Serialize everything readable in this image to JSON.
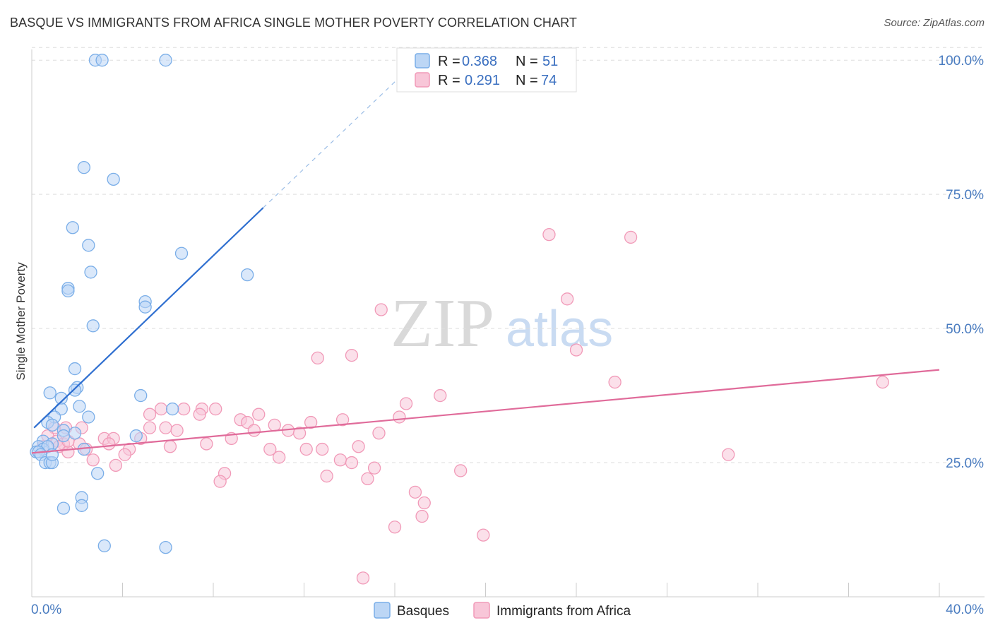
{
  "title": "BASQUE VS IMMIGRANTS FROM AFRICA SINGLE MOTHER POVERTY CORRELATION CHART",
  "source": "Source: ZipAtlas.com",
  "watermark": {
    "zip": "ZIP",
    "atlas": "atlas"
  },
  "colors": {
    "basque": "#7aaee8",
    "basque_fill": "#bcd6f5",
    "basque_line": "#2f6fd0",
    "africa": "#f19ab8",
    "africa_fill": "#f8c6d8",
    "africa_line": "#e06b9a",
    "tick_text": "#4a7cc0",
    "grid": "#dddddd"
  },
  "legend": {
    "r_label": "R =",
    "n_label": "N =",
    "rows": [
      {
        "r": "0.368",
        "n": "51"
      },
      {
        "r": "0.291",
        "n": "74"
      }
    ]
  },
  "bottom_legend": [
    "Basques",
    "Immigrants from Africa"
  ],
  "chart_data": {
    "type": "scatter",
    "xlabel": "",
    "ylabel": "Single Mother Poverty",
    "xlim": [
      0,
      40
    ],
    "ylim": [
      0,
      102
    ],
    "x_tick_labels": [
      "0.0%",
      "40.0%"
    ],
    "y_ticks": [
      25,
      50,
      75,
      100
    ],
    "y_tick_labels": [
      "25.0%",
      "50.0%",
      "75.0%",
      "100.0%"
    ],
    "grid": true,
    "legend_position": "top-center",
    "series": [
      {
        "name": "Basques",
        "r": 0.368,
        "n": 51,
        "trend": {
          "x0": 0.1,
          "y0": 31.5,
          "x1": 10.2,
          "y1": 72.5,
          "dash_to_x": 17.0,
          "dash_to_y": 100.0
        },
        "points": [
          [
            2.8,
            100
          ],
          [
            3.1,
            100
          ],
          [
            5.9,
            100
          ],
          [
            2.3,
            80
          ],
          [
            3.6,
            77.8
          ],
          [
            1.8,
            68.8
          ],
          [
            2.5,
            65.5
          ],
          [
            6.6,
            64
          ],
          [
            2.6,
            60.5
          ],
          [
            9.5,
            60
          ],
          [
            1.6,
            57.5
          ],
          [
            1.6,
            57
          ],
          [
            5.0,
            55
          ],
          [
            5.0,
            54
          ],
          [
            2.7,
            50.5
          ],
          [
            1.9,
            42.5
          ],
          [
            2.0,
            39
          ],
          [
            0.8,
            38
          ],
          [
            1.9,
            38.5
          ],
          [
            4.8,
            37.5
          ],
          [
            1.3,
            37
          ],
          [
            2.1,
            35.5
          ],
          [
            1.3,
            35
          ],
          [
            6.2,
            35
          ],
          [
            2.5,
            33.5
          ],
          [
            1.0,
            33.5
          ],
          [
            0.7,
            32.5
          ],
          [
            0.9,
            32
          ],
          [
            1.4,
            31
          ],
          [
            1.4,
            30
          ],
          [
            1.9,
            30.5
          ],
          [
            4.6,
            30
          ],
          [
            0.5,
            29
          ],
          [
            0.9,
            28.5
          ],
          [
            0.3,
            28
          ],
          [
            0.5,
            27.5
          ],
          [
            0.7,
            28
          ],
          [
            0.2,
            27
          ],
          [
            0.3,
            27
          ],
          [
            0.4,
            26.5
          ],
          [
            2.3,
            27.5
          ],
          [
            0.6,
            25
          ],
          [
            0.8,
            25
          ],
          [
            0.9,
            25
          ],
          [
            2.9,
            23
          ],
          [
            2.2,
            18.5
          ],
          [
            2.2,
            17
          ],
          [
            1.4,
            16.5
          ],
          [
            3.2,
            9.5
          ],
          [
            5.9,
            9.2
          ],
          [
            0.9,
            26.5
          ]
        ]
      },
      {
        "name": "Immigrants from Africa",
        "r": 0.291,
        "n": 74,
        "trend": {
          "x0": 0.0,
          "y0": 26.8,
          "x1": 40.0,
          "y1": 42.3
        },
        "points": [
          [
            22.8,
            67.5
          ],
          [
            26.4,
            67
          ],
          [
            23.6,
            55.5
          ],
          [
            15.4,
            53.5
          ],
          [
            24.0,
            46
          ],
          [
            12.6,
            44.5
          ],
          [
            14.1,
            45
          ],
          [
            25.7,
            40
          ],
          [
            37.5,
            40
          ],
          [
            18.0,
            37.5
          ],
          [
            16.5,
            36
          ],
          [
            5.7,
            35
          ],
          [
            6.7,
            35
          ],
          [
            7.5,
            35
          ],
          [
            8.1,
            35
          ],
          [
            5.2,
            34
          ],
          [
            7.4,
            34
          ],
          [
            10.0,
            34
          ],
          [
            16.2,
            33.5
          ],
          [
            9.2,
            33
          ],
          [
            9.5,
            32.5
          ],
          [
            12.3,
            32.5
          ],
          [
            13.7,
            33
          ],
          [
            10.7,
            32
          ],
          [
            5.2,
            31.5
          ],
          [
            5.9,
            31.5
          ],
          [
            1.0,
            31.5
          ],
          [
            1.5,
            31.5
          ],
          [
            2.2,
            31.5
          ],
          [
            6.4,
            31
          ],
          [
            11.3,
            31
          ],
          [
            11.8,
            30.5
          ],
          [
            9.8,
            31
          ],
          [
            15.3,
            30.5
          ],
          [
            3.2,
            29.5
          ],
          [
            3.6,
            29.5
          ],
          [
            4.8,
            29.5
          ],
          [
            8.8,
            29.5
          ],
          [
            0.7,
            30
          ],
          [
            1.1,
            29
          ],
          [
            1.4,
            28.5
          ],
          [
            2.1,
            28.5
          ],
          [
            0.5,
            28
          ],
          [
            1.2,
            28
          ],
          [
            3.4,
            28.5
          ],
          [
            4.3,
            27.5
          ],
          [
            6.1,
            28
          ],
          [
            7.7,
            28.5
          ],
          [
            14.4,
            28
          ],
          [
            12.1,
            27.5
          ],
          [
            12.8,
            27.5
          ],
          [
            10.5,
            27.5
          ],
          [
            2.4,
            27.5
          ],
          [
            1.6,
            27
          ],
          [
            4.1,
            26.5
          ],
          [
            10.9,
            26
          ],
          [
            13.6,
            25.5
          ],
          [
            14.1,
            25
          ],
          [
            2.7,
            25.5
          ],
          [
            3.7,
            24.5
          ],
          [
            8.5,
            23
          ],
          [
            15.1,
            24
          ],
          [
            18.9,
            23.5
          ],
          [
            30.7,
            26.5
          ],
          [
            13.0,
            22.5
          ],
          [
            14.8,
            22
          ],
          [
            8.3,
            21.5
          ],
          [
            16.9,
            19.5
          ],
          [
            17.3,
            17.5
          ],
          [
            17.2,
            15
          ],
          [
            16.0,
            13
          ],
          [
            19.9,
            11.5
          ],
          [
            14.6,
            3.5
          ],
          [
            1.6,
            29
          ]
        ]
      }
    ]
  }
}
